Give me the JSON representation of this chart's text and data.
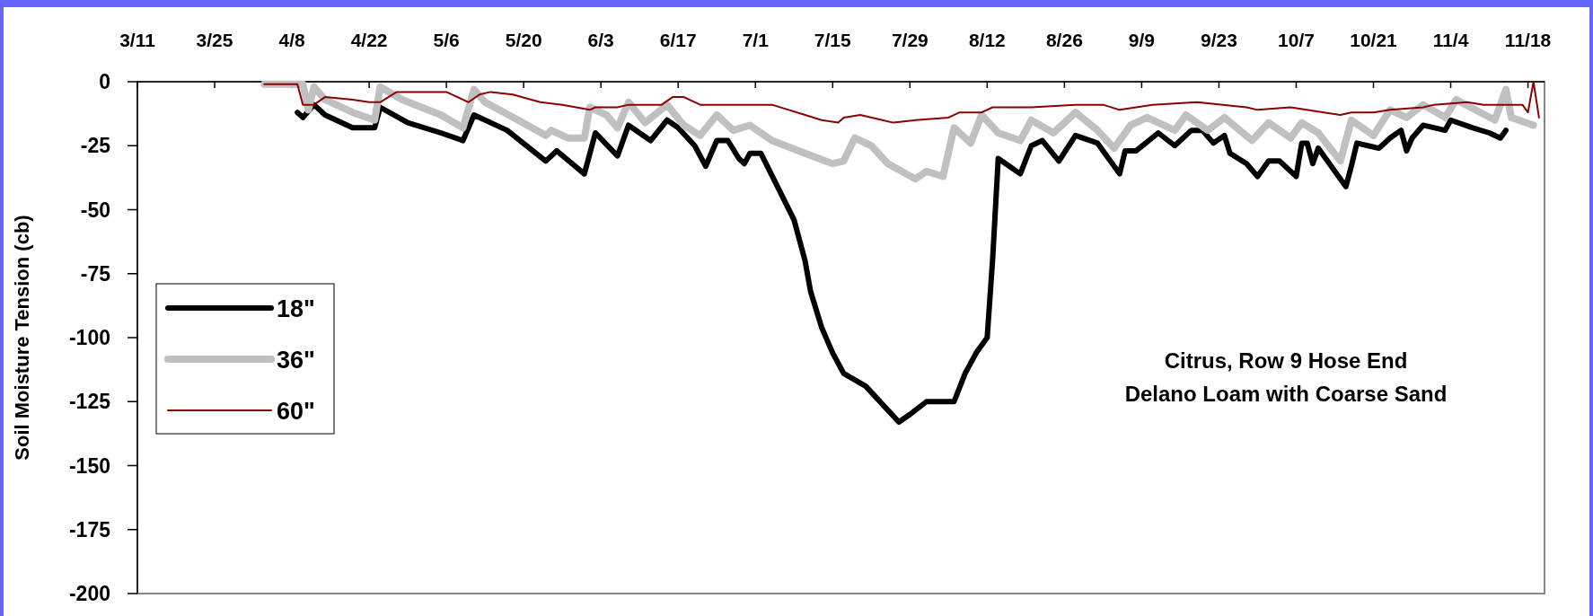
{
  "chart_data": {
    "type": "line",
    "ylabel": "Soil Moisture Tension (cb)",
    "annotations": [
      "Citrus, Row 9 Hose End",
      "Delano Loam with Coarse Sand"
    ],
    "xlim": [
      "--03-11",
      "--11-21"
    ],
    "xticks": [
      {
        "value": "--03-11",
        "label": "3/11"
      },
      {
        "value": "--03-25",
        "label": "3/25"
      },
      {
        "value": "--04-08",
        "label": "4/8"
      },
      {
        "value": "--04-22",
        "label": "4/22"
      },
      {
        "value": "--05-06",
        "label": "5/6"
      },
      {
        "value": "--05-20",
        "label": "5/20"
      },
      {
        "value": "--06-03",
        "label": "6/3"
      },
      {
        "value": "--06-17",
        "label": "6/17"
      },
      {
        "value": "--07-01",
        "label": "7/1"
      },
      {
        "value": "--07-15",
        "label": "7/15"
      },
      {
        "value": "--07-29",
        "label": "7/29"
      },
      {
        "value": "--08-12",
        "label": "8/12"
      },
      {
        "value": "--08-26",
        "label": "8/26"
      },
      {
        "value": "--09-09",
        "label": "9/9"
      },
      {
        "value": "--09-23",
        "label": "9/23"
      },
      {
        "value": "--10-07",
        "label": "10/7"
      },
      {
        "value": "--10-21",
        "label": "10/21"
      },
      {
        "value": "--11-04",
        "label": "11/4"
      },
      {
        "value": "--11-18",
        "label": "11/18"
      }
    ],
    "ylim": [
      -200,
      0
    ],
    "yticks": [
      0,
      -25,
      -50,
      -75,
      -100,
      -125,
      -150,
      -175,
      -200
    ],
    "grid": false,
    "legend": "left",
    "marker": "none",
    "line_style": "solid",
    "series": [
      {
        "name": "18\"",
        "color": "#000000",
        "x": [
          "--04-09",
          "--04-10",
          "--04-12",
          "--04-14",
          "--04-19",
          "--04-23",
          "--04-24",
          "--04-29",
          "--05-05",
          "--05-09",
          "--05-11",
          "--05-17",
          "--05-24",
          "--05-26",
          "--05-31",
          "--06-02",
          "--06-06",
          "--06-08",
          "--06-12",
          "--06-15",
          "--06-17",
          "--06-20",
          "--06-22",
          "--06-24",
          "--06-26",
          "--06-28",
          "--06-29",
          "--06-30",
          "--07-02",
          "--07-05",
          "--07-08",
          "--07-10",
          "--07-11",
          "--07-13",
          "--07-15",
          "--07-17",
          "--07-21",
          "--07-24",
          "--07-27",
          "--07-29",
          "--08-01",
          "--08-06",
          "--08-08",
          "--08-10",
          "--08-12",
          "--08-13",
          "--08-14",
          "--08-18",
          "--08-20",
          "--08-22",
          "--08-25",
          "--08-28",
          "--09-01",
          "--09-05",
          "--09-06",
          "--09-08",
          "--09-12",
          "--09-15",
          "--09-18",
          "--09-20",
          "--09-22",
          "--09-24",
          "--09-25",
          "--09-28",
          "--09-30",
          "--10-02",
          "--10-04",
          "--10-07",
          "--10-08",
          "--10-09",
          "--10-10",
          "--10-11",
          "--10-15",
          "--10-16",
          "--10-17",
          "--10-18",
          "--10-22",
          "--10-24",
          "--10-26",
          "--10-27",
          "--10-28",
          "--10-30",
          "--11-03",
          "--11-04",
          "--11-08",
          "--11-11",
          "--11-13",
          "--11-14"
        ],
        "values": [
          -12,
          -14,
          -9,
          -13,
          -18,
          -18,
          -10,
          -16,
          -20,
          -23,
          -13,
          -19,
          -31,
          -27,
          -36,
          -20,
          -29,
          -17,
          -23,
          -15,
          -18,
          -25,
          -33,
          -23,
          -23,
          -30,
          -32,
          -28,
          -28,
          -41,
          -54,
          -70,
          -82,
          -96,
          -106,
          -114,
          -119,
          -126,
          -133,
          -130,
          -125,
          -125,
          -114,
          -106,
          -100,
          -69,
          -30,
          -36,
          -25,
          -23,
          -31,
          -21,
          -24,
          -36,
          -27,
          -27,
          -20,
          -25,
          -19,
          -19,
          -24,
          -21,
          -28,
          -32,
          -37,
          -31,
          -31,
          -37,
          -24,
          -24,
          -32,
          -26,
          -38,
          -41,
          -33,
          -24,
          -26,
          -22,
          -19,
          -27,
          -22,
          -17,
          -19,
          -15,
          -18,
          -20,
          -22,
          -19
        ]
      },
      {
        "name": "36\"",
        "color": "#c0c0c0",
        "x": [
          "--04-03",
          "--04-09",
          "--04-10",
          "--04-11",
          "--04-12",
          "--04-14",
          "--04-19",
          "--04-23",
          "--04-24",
          "--04-28",
          "--05-05",
          "--05-09",
          "--05-11",
          "--05-13",
          "--05-19",
          "--05-24",
          "--05-25",
          "--05-28",
          "--05-31",
          "--06-01",
          "--06-04",
          "--06-06",
          "--06-08",
          "--06-11",
          "--06-15",
          "--06-18",
          "--06-21",
          "--06-24",
          "--06-27",
          "--06-30",
          "--07-04",
          "--07-10",
          "--07-15",
          "--07-17",
          "--07-19",
          "--07-22",
          "--07-25",
          "--07-30",
          "--08-01",
          "--08-04",
          "--08-06",
          "--08-09",
          "--08-11",
          "--08-14",
          "--08-18",
          "--08-20",
          "--08-24",
          "--08-28",
          "--09-01",
          "--09-04",
          "--09-07",
          "--09-10",
          "--09-15",
          "--09-17",
          "--09-21",
          "--09-24",
          "--09-29",
          "--10-02",
          "--10-06",
          "--10-08",
          "--10-11",
          "--10-15",
          "--10-17",
          "--10-21",
          "--10-24",
          "--10-27",
          "--10-30",
          "--11-03",
          "--11-05",
          "--11-12",
          "--11-14",
          "--11-15",
          "--11-19"
        ],
        "values": [
          -1,
          -1,
          -1,
          -11,
          -2,
          -7,
          -12,
          -15,
          -2,
          -7,
          -13,
          -18,
          -3,
          -8,
          -15,
          -21,
          -19,
          -22,
          -22,
          -10,
          -13,
          -18,
          -8,
          -16,
          -9,
          -17,
          -21,
          -13,
          -19,
          -17,
          -23,
          -28,
          -32,
          -31,
          -22,
          -25,
          -32,
          -38,
          -35,
          -37,
          -18,
          -24,
          -13,
          -20,
          -23,
          -15,
          -20,
          -12,
          -19,
          -26,
          -17,
          -14,
          -19,
          -13,
          -19,
          -14,
          -23,
          -16,
          -22,
          -16,
          -20,
          -31,
          -15,
          -21,
          -11,
          -14,
          -9,
          -14,
          -7,
          -15,
          -3,
          -14,
          -17
        ]
      },
      {
        "name": "60\"",
        "color": "#8b0000",
        "x": [
          "--04-03",
          "--04-09",
          "--04-10",
          "--04-12",
          "--04-14",
          "--04-19",
          "--04-22",
          "--04-24",
          "--04-27",
          "--05-06",
          "--05-10",
          "--05-12",
          "--05-14",
          "--05-18",
          "--05-23",
          "--05-27",
          "--06-01",
          "--06-02",
          "--06-06",
          "--06-08",
          "--06-14",
          "--06-16",
          "--06-18",
          "--06-21",
          "--07-04",
          "--07-10",
          "--07-13",
          "--07-16",
          "--07-17",
          "--07-20",
          "--07-24",
          "--07-26",
          "--07-30",
          "--08-05",
          "--08-07",
          "--08-11",
          "--08-13",
          "--08-20",
          "--08-28",
          "--09-02",
          "--09-05",
          "--09-11",
          "--09-19",
          "--09-28",
          "--09-30",
          "--10-06",
          "--10-12",
          "--10-15",
          "--10-17",
          "--10-21",
          "--10-24",
          "--10-30",
          "--11-01",
          "--11-07",
          "--11-10",
          "--11-17",
          "--11-18",
          "--11-19",
          "--11-20"
        ],
        "values": [
          -1,
          -1,
          -9,
          -9,
          -6,
          -7,
          -8,
          -8,
          -4,
          -4,
          -8,
          -5,
          -4,
          -5,
          -8,
          -9,
          -11,
          -10,
          -10,
          -9,
          -9,
          -6,
          -6,
          -9,
          -9,
          -13,
          -15,
          -16,
          -14,
          -13,
          -15,
          -16,
          -15,
          -14,
          -12,
          -12,
          -10,
          -10,
          -9,
          -9,
          -11,
          -9,
          -8,
          -10,
          -11,
          -10,
          -12,
          -13,
          -12,
          -12,
          -11,
          -10,
          -9,
          -8,
          -9,
          -9,
          -12,
          0,
          -14
        ]
      }
    ]
  }
}
